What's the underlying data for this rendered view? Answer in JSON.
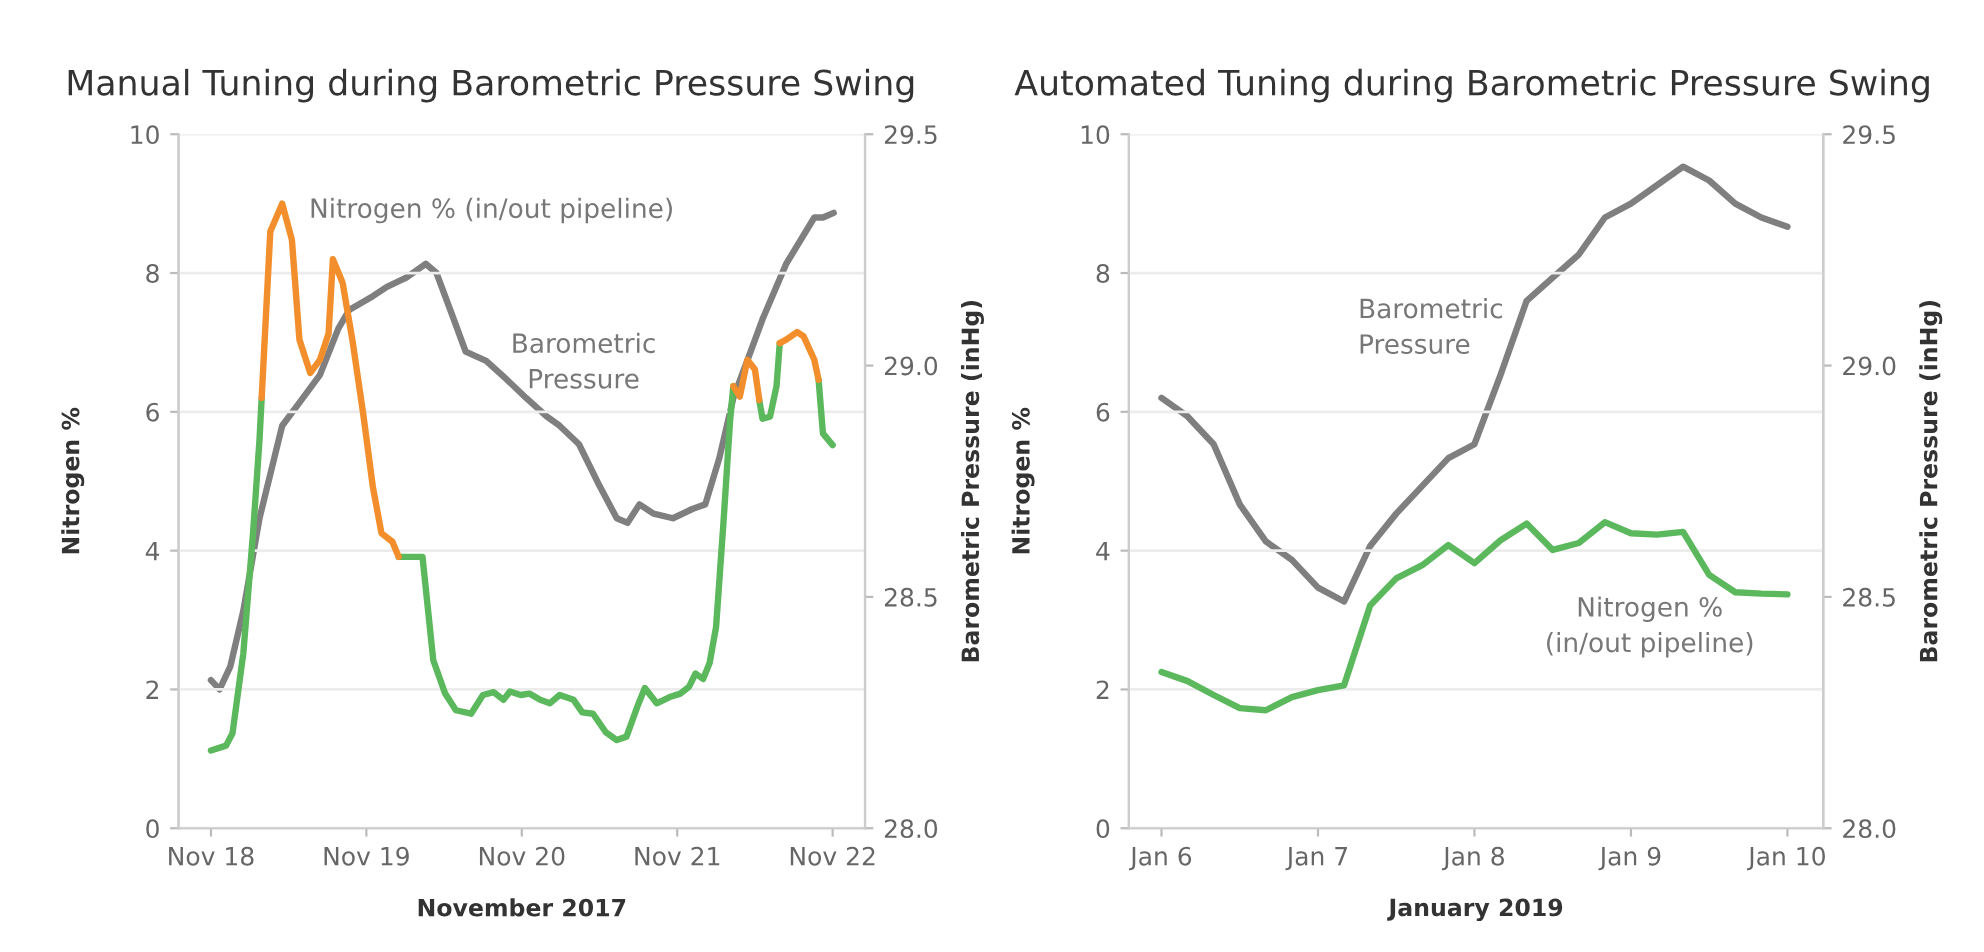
{
  "chart_data": [
    {
      "type": "line",
      "title": "Manual Tuning during Barometric Pressure Swing",
      "xlabel": "November 2017",
      "ylabel": "Nitrogen %",
      "y2label": "Barometric Pressure (inHg)",
      "annotations": [
        "Nitrogen % (in/out pipeline)",
        "Barometric\nPressure"
      ],
      "xlim": [
        "2017-11-17T19:00",
        "2017-11-22T05:00"
      ],
      "xticks": [
        {
          "value": "2017-11-18T00:00",
          "label": "Nov 18"
        },
        {
          "value": "2017-11-19T00:00",
          "label": "Nov 19"
        },
        {
          "value": "2017-11-20T00:00",
          "label": "Nov 20"
        },
        {
          "value": "2017-11-21T00:00",
          "label": "Nov 21"
        },
        {
          "value": "2017-11-22T00:00",
          "label": "Nov 22"
        }
      ],
      "ylim": [
        0,
        10
      ],
      "yticks": [
        0,
        2,
        4,
        6,
        8,
        10
      ],
      "y2lim": [
        28.0,
        29.5
      ],
      "y2ticks": [
        {
          "value": 28.0,
          "label": "28.0"
        },
        {
          "value": 28.5,
          "label": "28.5"
        },
        {
          "value": 29.0,
          "label": "29.0"
        },
        {
          "value": 29.5,
          "label": "29.5"
        }
      ],
      "grid": "y",
      "line_style": "solid",
      "series": [
        {
          "color": "#7f7f7f",
          "axis": "y2",
          "x": [
            "2017-11-18T00:00",
            "2017-11-18T01:20",
            "2017-11-18T03:00",
            "2017-11-18T05:00",
            "2017-11-18T07:30",
            "2017-11-18T11:00",
            "2017-11-18T13:40",
            "2017-11-18T16:50",
            "2017-11-18T19:40",
            "2017-11-18T21:20",
            "2017-11-19T01:00",
            "2017-11-19T03:10",
            "2017-11-19T06:10",
            "2017-11-19T09:10",
            "2017-11-19T10:50",
            "2017-11-19T13:30",
            "2017-11-19T15:20",
            "2017-11-19T18:30",
            "2017-11-19T21:40",
            "2017-11-20T00:40",
            "2017-11-20T03:50",
            "2017-11-20T05:50",
            "2017-11-20T08:50",
            "2017-11-20T12:00",
            "2017-11-20T14:40",
            "2017-11-20T16:20",
            "2017-11-20T18:10",
            "2017-11-20T20:20",
            "2017-11-20T23:20",
            "2017-11-21T02:20",
            "2017-11-21T04:20",
            "2017-11-21T06:30",
            "2017-11-21T08:40",
            "2017-11-21T11:20",
            "2017-11-21T13:10",
            "2017-11-21T16:50",
            "2017-11-21T21:10",
            "2017-11-21T22:30",
            "2017-11-22T00:10"
          ],
          "values": [
            28.32,
            28.3,
            28.35,
            28.47,
            28.67,
            28.87,
            28.92,
            28.98,
            29.08,
            29.12,
            29.15,
            29.17,
            29.19,
            29.22,
            29.2,
            29.1,
            29.03,
            29.01,
            28.97,
            28.93,
            28.89,
            28.87,
            28.83,
            28.74,
            28.67,
            28.66,
            28.7,
            28.68,
            28.67,
            28.69,
            28.7,
            28.8,
            28.93,
            29.03,
            29.1,
            29.22,
            29.32,
            29.32,
            29.33
          ]
        },
        {
          "color": "#5cb85c",
          "x": [
            "2017-11-18T00:00",
            "2017-11-18T02:20",
            "2017-11-18T03:20",
            "2017-11-18T05:00",
            "2017-11-18T06:30",
            "2017-11-18T07:30",
            "2017-11-18T07:50",
            "2017-11-18T12:00",
            "2017-11-19T05:00",
            "2017-11-19T08:40",
            "2017-11-19T10:20",
            "2017-11-19T12:10",
            "2017-11-19T13:50",
            "2017-11-19T16:10",
            "2017-11-19T18:00",
            "2017-11-19T19:40",
            "2017-11-19T21:10",
            "2017-11-19T22:10",
            "2017-11-19T23:50",
            "2017-11-20T01:10",
            "2017-11-20T02:50",
            "2017-11-20T04:20",
            "2017-11-20T05:50",
            "2017-11-20T08:00",
            "2017-11-20T09:20",
            "2017-11-20T11:00",
            "2017-11-20T13:00",
            "2017-11-20T14:40",
            "2017-11-20T16:10",
            "2017-11-20T17:50",
            "2017-11-20T19:00",
            "2017-11-20T20:50",
            "2017-11-20T22:50",
            "2017-11-21T00:30",
            "2017-11-21T01:50",
            "2017-11-21T02:50",
            "2017-11-21T04:00",
            "2017-11-21T05:00",
            "2017-11-21T06:00",
            "2017-11-21T07:10",
            "2017-11-21T08:10",
            "2017-11-21T08:40",
            "2017-11-21T10:00",
            "2017-11-21T12:40",
            "2017-11-21T13:10",
            "2017-11-21T14:20",
            "2017-11-21T15:20",
            "2017-11-21T15:50",
            "2017-11-21T18:00",
            "2017-11-21T21:50",
            "2017-11-21T22:30",
            "2017-11-22T00:00"
          ],
          "values": [
            1.12,
            1.19,
            1.37,
            2.52,
            4.25,
            5.6,
            6.2,
            null,
            3.91,
            3.91,
            2.42,
            1.94,
            1.7,
            1.65,
            1.92,
            1.96,
            1.85,
            1.97,
            1.92,
            1.94,
            1.85,
            1.8,
            1.92,
            1.85,
            1.67,
            1.65,
            1.38,
            1.27,
            1.32,
            1.75,
            2.02,
            1.8,
            1.89,
            1.94,
            2.04,
            2.23,
            2.15,
            2.38,
            2.9,
            4.44,
            5.88,
            6.37,
            null,
            6.17,
            5.9,
            5.93,
            6.37,
            6.99,
            null,
            6.46,
            5.69,
            5.52
          ]
        },
        {
          "color": "#f28e2b",
          "x": [
            "2017-11-18T07:50",
            "2017-11-18T09:10",
            "2017-11-18T11:00",
            "2017-11-18T12:30",
            "2017-11-18T13:40",
            "2017-11-18T15:20",
            "2017-11-18T16:50",
            "2017-11-18T18:10",
            "2017-11-18T18:50",
            "2017-11-18T20:20",
            "2017-11-18T21:50",
            "2017-11-18T23:30",
            "2017-11-19T01:00",
            "2017-11-19T02:20",
            "2017-11-19T04:00",
            "2017-11-19T05:00",
            "2017-11-20T12:00",
            "2017-11-21T08:40",
            "2017-11-21T09:40",
            "2017-11-21T10:50",
            "2017-11-21T12:00",
            "2017-11-21T12:40",
            "2017-11-21T14:00",
            "2017-11-21T15:50",
            "2017-11-21T16:50",
            "2017-11-21T18:30",
            "2017-11-21T19:30",
            "2017-11-21T21:10",
            "2017-11-21T21:50"
          ],
          "values": [
            6.2,
            8.6,
            9.0,
            8.48,
            7.04,
            6.56,
            6.75,
            7.13,
            8.2,
            7.86,
            7.04,
            5.98,
            4.92,
            4.25,
            4.13,
            3.91,
            null,
            6.37,
            6.22,
            6.75,
            6.61,
            6.17,
            null,
            6.99,
            7.04,
            7.15,
            7.09,
            6.75,
            6.46
          ]
        }
      ]
    },
    {
      "type": "line",
      "title": "Automated Tuning during Barometric Pressure Swing",
      "xlabel": "January 2019",
      "ylabel": "Nitrogen %",
      "y2label": "Barometric Pressure (inHg)",
      "annotations": [
        "Barometric\nPressure",
        "Nitrogen %\n(in/out pipeline)"
      ],
      "xlim": [
        "2019-01-05T19:00",
        "2019-01-10T05:30"
      ],
      "xticks": [
        {
          "value": "2019-01-06T00:00",
          "label": "Jan 6"
        },
        {
          "value": "2019-01-07T00:00",
          "label": "Jan 7"
        },
        {
          "value": "2019-01-08T00:00",
          "label": "Jan 8"
        },
        {
          "value": "2019-01-09T00:00",
          "label": "Jan 9"
        },
        {
          "value": "2019-01-10T00:00",
          "label": "Jan 10"
        }
      ],
      "ylim": [
        0,
        10
      ],
      "yticks": [
        0,
        2,
        4,
        6,
        8,
        10
      ],
      "y2lim": [
        28.0,
        29.5
      ],
      "y2ticks": [
        {
          "value": 28.0,
          "label": "28.0"
        },
        {
          "value": 28.5,
          "label": "28.5"
        },
        {
          "value": 29.0,
          "label": "29.0"
        },
        {
          "value": 29.5,
          "label": "29.5"
        }
      ],
      "grid": "y",
      "line_style": "solid",
      "x": [
        "2019-01-06T00:00",
        "2019-01-06T04:00",
        "2019-01-06T08:00",
        "2019-01-06T12:00",
        "2019-01-06T16:00",
        "2019-01-06T20:00",
        "2019-01-07T00:00",
        "2019-01-07T04:00",
        "2019-01-07T08:00",
        "2019-01-07T12:00",
        "2019-01-07T16:00",
        "2019-01-07T20:00",
        "2019-01-08T00:00",
        "2019-01-08T04:00",
        "2019-01-08T08:00",
        "2019-01-08T12:00",
        "2019-01-08T16:00",
        "2019-01-08T20:00",
        "2019-01-09T00:00",
        "2019-01-09T04:00",
        "2019-01-09T08:00",
        "2019-01-09T12:00",
        "2019-01-09T16:00",
        "2019-01-09T20:00",
        "2019-01-10T00:00"
      ],
      "series": [
        {
          "color": "#7f7f7f",
          "axis": "y2",
          "values": [
            28.93,
            28.89,
            28.83,
            28.7,
            28.62,
            28.58,
            28.52,
            28.49,
            28.61,
            28.68,
            28.74,
            28.8,
            28.83,
            28.98,
            29.14,
            29.19,
            29.24,
            29.32,
            29.35,
            29.39,
            29.43,
            29.4,
            29.35,
            29.32,
            29.3
          ]
        },
        {
          "color": "#5cb85c",
          "values": [
            2.25,
            2.12,
            1.92,
            1.73,
            1.7,
            1.89,
            1.99,
            2.06,
            3.21,
            3.6,
            3.79,
            4.08,
            3.82,
            4.15,
            4.39,
            4.01,
            4.11,
            4.41,
            4.25,
            4.23,
            4.27,
            3.65,
            3.4,
            3.38,
            3.37
          ]
        }
      ]
    }
  ]
}
